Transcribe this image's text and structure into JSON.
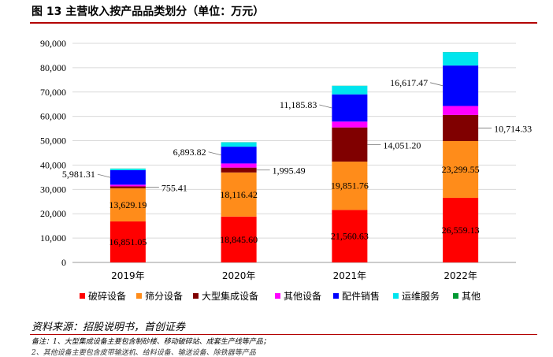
{
  "title": "图 13 主营收入按产品品类划分（单位：万元）",
  "source": "资料来源：招股说明书，首创证券",
  "note": "备注：1、大型集成设备主要包含制砂楼、移动破碎站、成套生产线等产品；",
  "note2": "2、其他设备主要包含皮带输送机、给料设备、输送设备、除铁器等产品",
  "chart_data": {
    "type": "bar",
    "stacked": true,
    "categories": [
      "2019年",
      "2020年",
      "2021年",
      "2022年"
    ],
    "ylim": [
      0,
      90000
    ],
    "yticks": [
      0,
      10000,
      20000,
      30000,
      40000,
      50000,
      60000,
      70000,
      80000,
      90000
    ],
    "ytick_labels": [
      "0",
      "10,000",
      "20,000",
      "30,000",
      "40,000",
      "50,000",
      "60,000",
      "70,000",
      "80,000",
      "90,000"
    ],
    "grid": true,
    "legend_position": "bottom",
    "series": [
      {
        "name": "破碎设备",
        "color": "#ff0000",
        "values": [
          16851.05,
          18845.6,
          21560.63,
          26559.13
        ],
        "labels": [
          "16,851.05",
          "18,845.60",
          "21,560.63",
          "26,559.13"
        ]
      },
      {
        "name": "筛分设备",
        "color": "#ff8c1a",
        "values": [
          13629.19,
          18116.42,
          19851.76,
          23299.55
        ],
        "labels": [
          "13,629.19",
          "18,116.42",
          "19,851.76",
          "23,299.55"
        ]
      },
      {
        "name": "大型集成设备",
        "color": "#800000",
        "values": [
          755.41,
          1995.49,
          14051.2,
          10714.33
        ],
        "labels": [
          "755.41",
          "1,995.49",
          "14,051.20",
          "10,714.33"
        ]
      },
      {
        "name": "其他设备",
        "color": "#ff00ff",
        "values": [
          700,
          1700,
          2400,
          3700
        ],
        "labels": [
          "",
          "",
          "",
          ""
        ]
      },
      {
        "name": "配件销售",
        "color": "#0000ff",
        "values": [
          5981.31,
          6893.82,
          11185.83,
          16617.47
        ],
        "labels": [
          "5,981.31",
          "6,893.82",
          "11,185.83",
          "16,617.47"
        ]
      },
      {
        "name": "运维服务",
        "color": "#00e5ee",
        "values": [
          600,
          1800,
          3500,
          5500
        ],
        "labels": [
          "",
          "",
          "",
          ""
        ]
      },
      {
        "name": "其他",
        "color": "#009933",
        "values": [
          50,
          50,
          50,
          50
        ],
        "labels": [
          "",
          "",
          "",
          ""
        ]
      }
    ]
  }
}
